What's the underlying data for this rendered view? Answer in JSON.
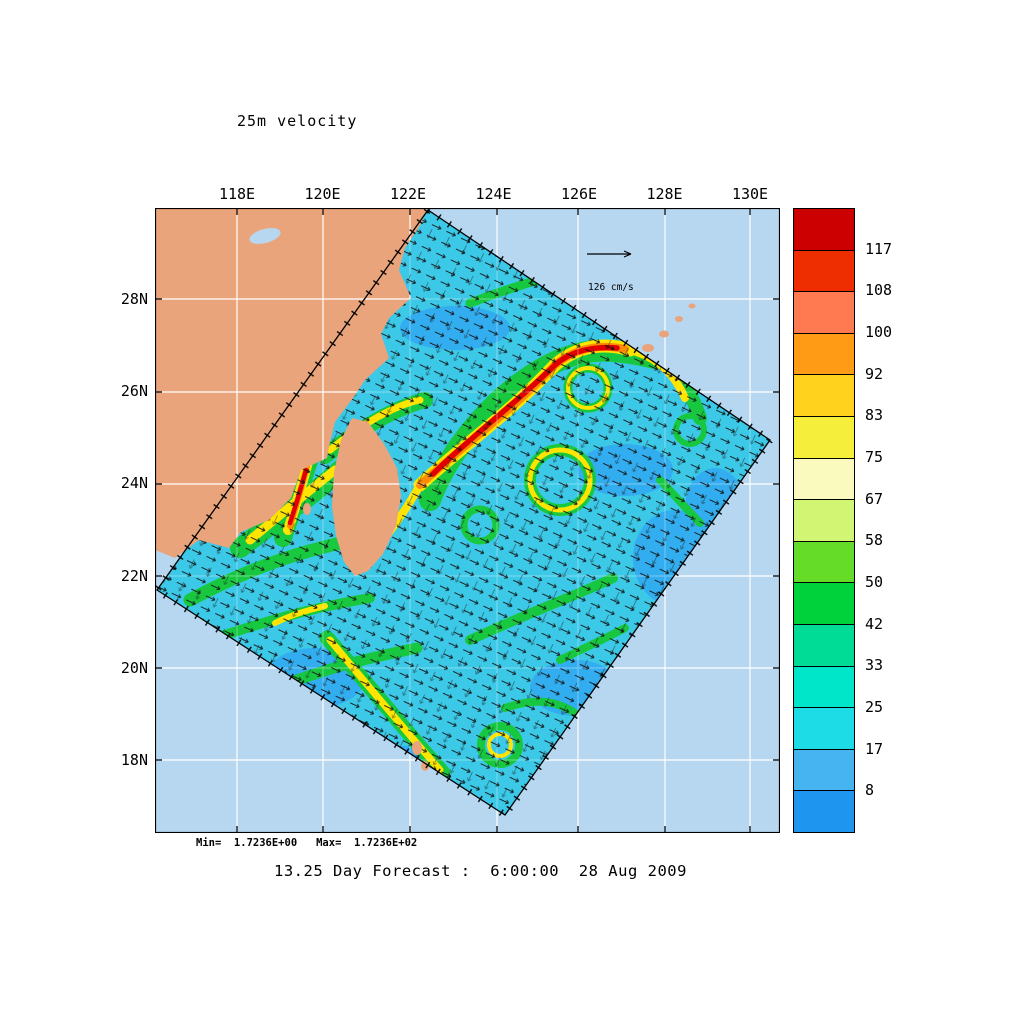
{
  "title": "25m velocity",
  "caption": "13.25 Day Forecast :  6:00:00  28 Aug 2009",
  "stats_line": "Min=  1.7236E+00   Max=  1.7236E+02",
  "reference_vector_label": "126 cm/s",
  "axes": {
    "x_ticks": [
      "118E",
      "120E",
      "122E",
      "124E",
      "126E",
      "128E",
      "130E"
    ],
    "y_ticks": [
      "28N",
      "26N",
      "24N",
      "22N",
      "20N",
      "18N"
    ]
  },
  "colorbar": {
    "labels": [
      "117",
      "108",
      "100",
      "92",
      "83",
      "75",
      "67",
      "58",
      "50",
      "42",
      "33",
      "25",
      "17",
      "8"
    ],
    "colors": [
      "#cc0000",
      "#ee2e00",
      "#ff7a50",
      "#ff9b14",
      "#ffd21e",
      "#f5ef3c",
      "#fafabe",
      "#d2f573",
      "#64dc28",
      "#00d23c",
      "#00dc96",
      "#00e6c8",
      "#1edce6",
      "#46b4f0",
      "#1e96f0"
    ]
  },
  "map_colors": {
    "ocean": "#b7d7f0",
    "land": "#e9a47c",
    "field_base": "#3cc9e8",
    "grid": "#ffffff"
  },
  "chart_data": {
    "type": "heatmap",
    "title": "25m velocity",
    "subtitle": "13.25 Day Forecast :  6:00:00  28 Aug 2009",
    "x_ticks": [
      "118E",
      "120E",
      "122E",
      "124E",
      "126E",
      "128E",
      "130E"
    ],
    "y_ticks": [
      "28N",
      "26N",
      "24N",
      "22N",
      "20N",
      "18N"
    ],
    "colorbar_levels": [
      8,
      17,
      25,
      33,
      42,
      50,
      58,
      67,
      75,
      83,
      92,
      100,
      108,
      117
    ],
    "units": "cm/s",
    "data_min": "1.7236E+00",
    "data_max": "1.7236E+02",
    "reference_vector": "126 cm/s",
    "legend_position": "right",
    "grid": true,
    "description": "Rotated ocean-model domain of 25m current vectors around Taiwan; strong Kuroshio jet (red/orange, >100 cm/s) along and east of Taiwan, cyan/blue background flow with green and yellow eddies"
  }
}
